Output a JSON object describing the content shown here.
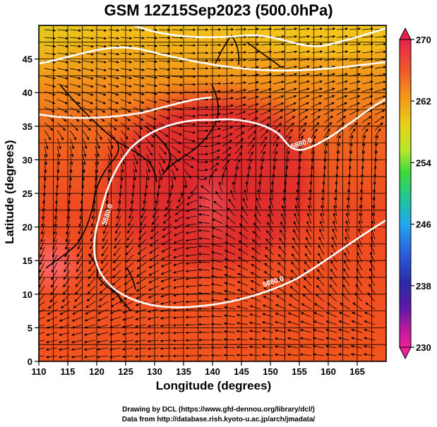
{
  "title": "GSM 12Z15Sep2023 (500.0hPa)",
  "axes": {
    "xlabel": "Longitude (degrees)",
    "ylabel": "Latitude  (degrees)",
    "xticks": [
      "110",
      "115",
      "120",
      "125",
      "130",
      "135",
      "140",
      "145",
      "150",
      "155",
      "160",
      "165"
    ],
    "yticks": [
      "0",
      "5",
      "10",
      "15",
      "20",
      "25",
      "30",
      "35",
      "40",
      "45"
    ]
  },
  "colorbar": {
    "ticks": [
      "270",
      "262",
      "254",
      "246",
      "238",
      "230"
    ],
    "colors": [
      "#e8224a",
      "#f0592a",
      "#f29a1a",
      "#e9d21a",
      "#b8e82a",
      "#3fd93a",
      "#1ec79b",
      "#22a8f0",
      "#2a5bd8",
      "#2a2aa8",
      "#5a1aa8",
      "#b81aa0",
      "#f0209c"
    ]
  },
  "contours": {
    "label": "5880.0",
    "contour_color": "#ffffff"
  },
  "credits": {
    "line1": "Drawing by DCL (https://www.gfd-dennou.org/library/dcl/)",
    "line2": "Data from http://database.rish.kyoto-u.ac.jp/arch/jmadata/"
  }
}
